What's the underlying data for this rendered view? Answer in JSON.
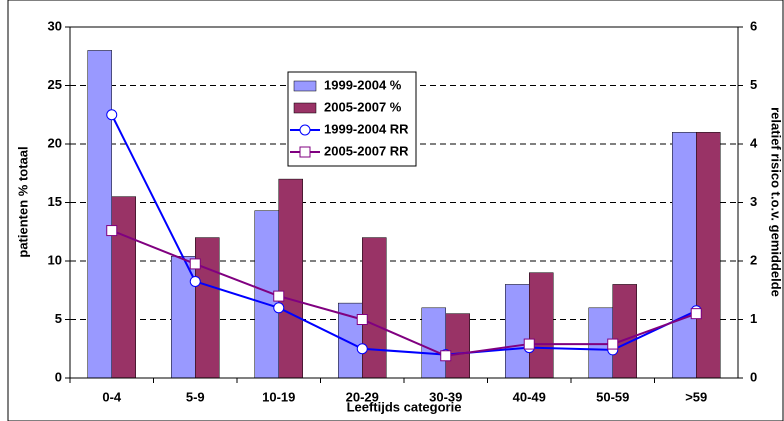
{
  "chart_data": {
    "type": "bar",
    "x_label": "Leeftijds categorie",
    "y_label": "patienten % totaal",
    "y2_label": "relatief risico t.o.v. gemiddelde",
    "categories": [
      "0-4",
      "5-9",
      "10-19",
      "20-29",
      "30-39",
      "40-49",
      "50-59",
      ">59"
    ],
    "series": [
      {
        "name": "1999-2004 %",
        "type": "bar",
        "color": "#9999ff",
        "values": [
          28,
          10.4,
          14.3,
          6.4,
          6,
          8,
          6,
          21
        ]
      },
      {
        "name": "2005-2007 %",
        "type": "bar",
        "color": "#993366",
        "values": [
          15.5,
          12,
          17,
          12,
          5.5,
          9,
          8,
          21
        ]
      },
      {
        "name": "1999-2004 RR",
        "type": "line",
        "marker": "circle",
        "axis": "y2",
        "color": "#0000ff",
        "values": [
          4.5,
          1.65,
          1.2,
          0.5,
          0.4,
          0.52,
          0.48,
          1.15
        ]
      },
      {
        "name": "2005-2007 RR",
        "type": "line",
        "marker": "square",
        "axis": "y2",
        "color": "#800080",
        "values": [
          2.52,
          1.95,
          1.4,
          1.0,
          0.38,
          0.58,
          0.58,
          1.1
        ]
      }
    ],
    "ylim": [
      0,
      30
    ],
    "yticks": [
      0,
      5,
      10,
      15,
      20,
      25,
      30
    ],
    "y2lim": [
      0,
      6
    ],
    "y2ticks": [
      0,
      1,
      2,
      3,
      4,
      5,
      6
    ],
    "grid": true
  }
}
